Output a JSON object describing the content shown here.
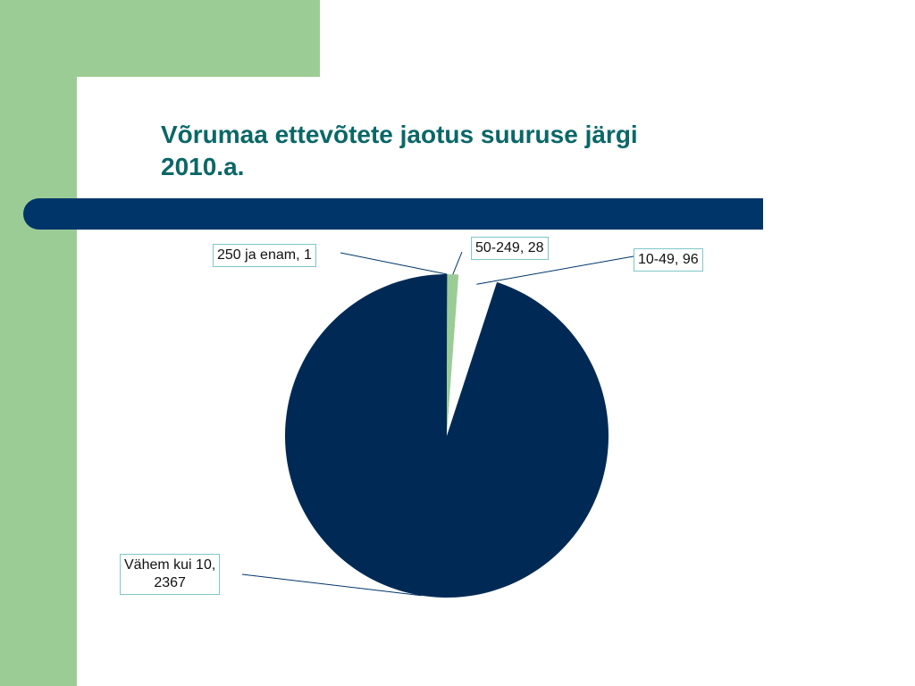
{
  "slide": {
    "title_line1": "Võrumaa ettevõtete jaotus suuruse järgi",
    "title_line2": "2010.a."
  },
  "colors": {
    "band": "#9ccc95",
    "bar": "#00356a",
    "title": "#0b6767",
    "callout_border": "#7fc7c7"
  },
  "chart_data": {
    "type": "pie",
    "title": "Võrumaa ettevõtete jaotus suuruse järgi 2010.a.",
    "slices": [
      {
        "category": "250 ja enam",
        "value": 1,
        "color": "#00356a",
        "label": "250 ja enam, 1"
      },
      {
        "category": "50-249",
        "value": 28,
        "color": "#9ccc95",
        "label": "50-249, 28"
      },
      {
        "category": "10-49",
        "value": 96,
        "color": "#ffffff",
        "label": "10-49, 96"
      },
      {
        "category": "Vähem kui 10",
        "value": 2367,
        "color": "#002a55",
        "label_line1": "Vähem kui 10,",
        "label_line2": "2367"
      }
    ]
  }
}
